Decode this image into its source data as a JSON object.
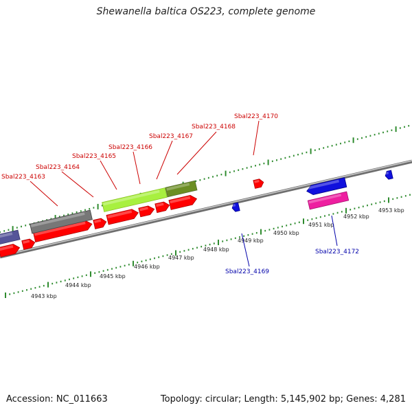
{
  "title": "Shewanella baltica OS223, complete genome",
  "footer": {
    "accession": "Accession: NC_011663",
    "summary": "Topology: circular; Length: 5,145,902 bp; Genes: 4,281"
  },
  "colors": {
    "background": "#ffffff",
    "backbone": "#8a8a8a",
    "tick": "#2e8b2e",
    "cds": "#ff0000",
    "cds_edge": "#b00000",
    "gene_label_fwd": "#cc0000",
    "gene_label_rev": "#0000aa",
    "rna_blue": "#1010dd",
    "pseudo_gray": "#777777",
    "lime": "#a8f040",
    "olive": "#6b8e23",
    "magenta": "#ee1fa0",
    "purple": "#555599"
  },
  "scale_labels": [
    "4943 kbp",
    "4944 kbp",
    "4945 kbp",
    "4946 kbp",
    "4947 kbp",
    "4948 kbp",
    "4949 kbp",
    "4950 kbp",
    "4951 kbp",
    "4952 kbp",
    "4953 kbp"
  ],
  "gene_labels": [
    "Sbal223_4163",
    "Sbal223_4164",
    "Sbal223_4165",
    "Sbal223_4166",
    "Sbal223_4167",
    "Sbal223_4168",
    "Sbal223_4170",
    "Sbal223_4169",
    "Sbal223_4172"
  ]
}
